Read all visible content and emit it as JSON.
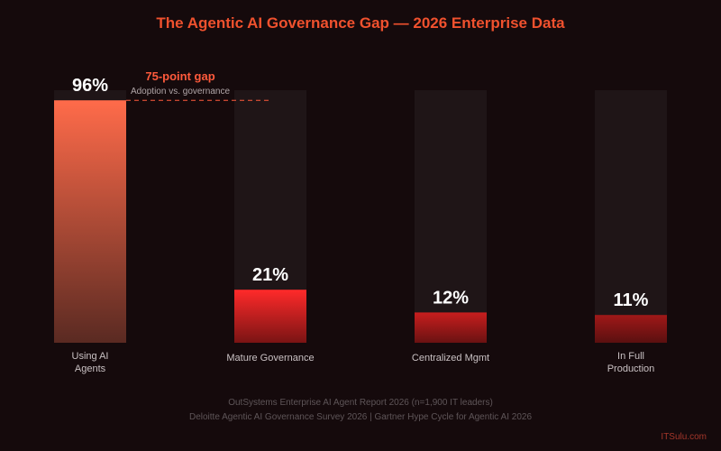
{
  "title": "The Agentic AI Governance Gap — 2026 Enterprise Data",
  "chart_data": {
    "type": "bar",
    "categories": [
      "Using AI Agents",
      "Mature Governance",
      "Centralized Mgmt",
      "In Full Production"
    ],
    "values": [
      96,
      21,
      12,
      11
    ],
    "value_labels": [
      "96%",
      "21%",
      "12%",
      "11%"
    ],
    "category_labels": [
      [
        "Using AI",
        "Agents"
      ],
      [
        "Mature Governance"
      ],
      [
        "Centralized Mgmt"
      ],
      [
        "In Full",
        "Production"
      ]
    ],
    "ylim": [
      0,
      100
    ],
    "bar_colors": [
      [
        "#ff6b4a",
        "#5a2a22"
      ],
      [
        "#ff2a2a",
        "#7a1414"
      ],
      [
        "#c81e1e",
        "#6a1212"
      ],
      [
        "#a01818",
        "#5a1010"
      ]
    ],
    "track_color": "#1f1517",
    "annotation": {
      "label": "75-point gap",
      "sublabel": "Adoption vs. governance",
      "color": "#ff5a3c",
      "from_value": 96
    },
    "grid": false
  },
  "sources": [
    "OutSystems Enterprise AI Agent Report 2026 (n=1,900 IT leaders)",
    "Deloitte Agentic AI Governance Survey 2026 | Gartner Hype Cycle for Agentic AI 2026"
  ],
  "watermark": "ITSulu.com"
}
